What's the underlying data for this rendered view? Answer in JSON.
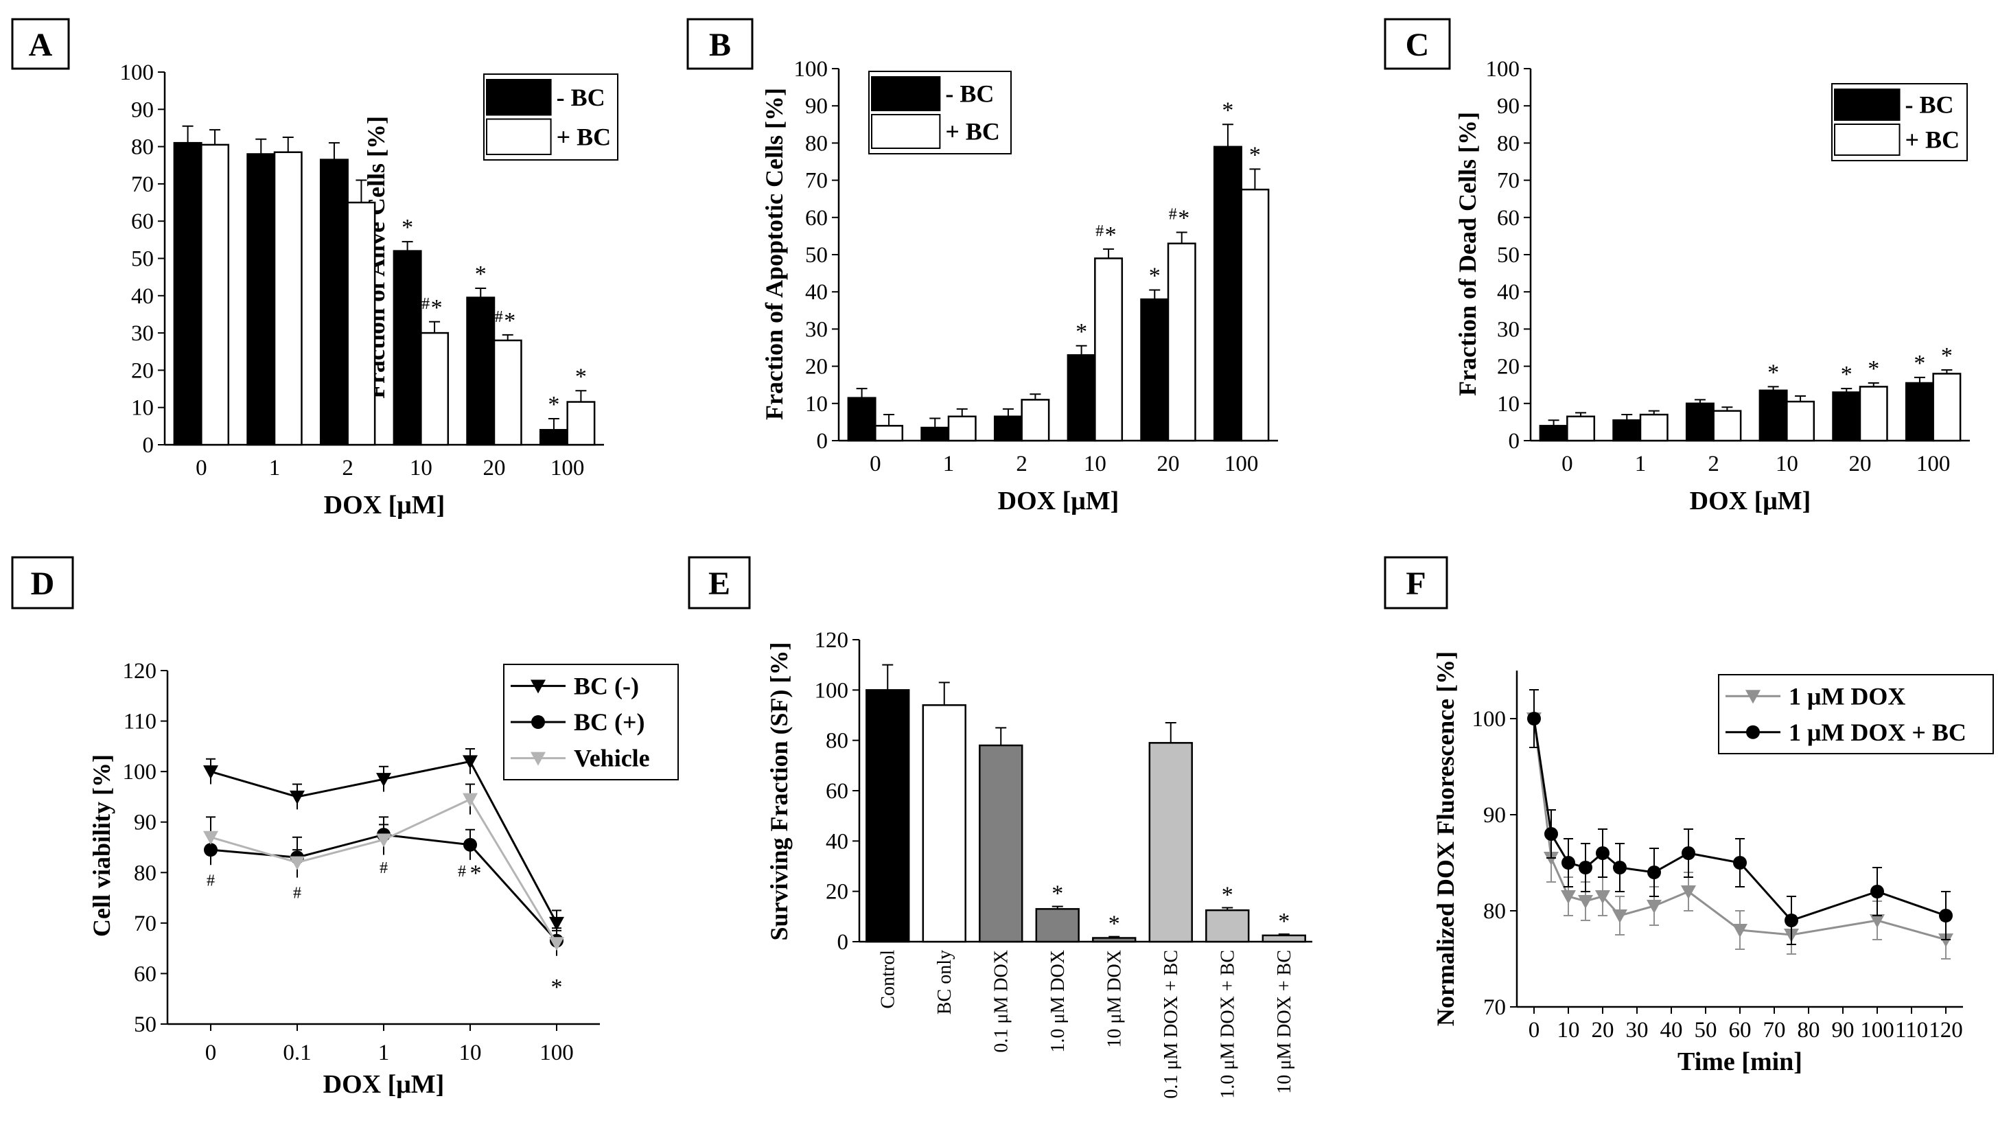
{
  "chart_data": [
    {
      "panel": "A",
      "type": "bar",
      "title": "A",
      "xlabel": "DOX [μM]",
      "ylabel": "Fraction of Alive Cells [%]",
      "ylim": [
        0,
        100
      ],
      "yticks": [
        "0",
        "10",
        "20",
        "30",
        "40",
        "50",
        "60",
        "70",
        "80",
        "90",
        "100"
      ],
      "categories": [
        "0",
        "1",
        "2",
        "10",
        "20",
        "100"
      ],
      "series": [
        {
          "name": "- BC",
          "color": "#000000",
          "values": [
            81,
            78,
            76.5,
            52,
            39.5,
            4
          ],
          "errors": [
            4.5,
            4,
            4.5,
            2.5,
            2.5,
            3
          ],
          "marks": [
            "",
            "",
            "",
            "*",
            "*",
            "*"
          ]
        },
        {
          "name": "+ BC",
          "color": "#ffffff",
          "values": [
            80.5,
            78.5,
            65,
            30,
            28,
            11.5
          ],
          "errors": [
            4,
            4,
            6,
            3,
            1.5,
            3
          ],
          "marks": [
            "",
            "",
            "",
            "#*",
            "#*",
            "*"
          ]
        }
      ],
      "legend": "top-right"
    },
    {
      "panel": "B",
      "type": "bar",
      "title": "B",
      "xlabel": "DOX [μM]",
      "ylabel": "Fraction of Apoptotic Cells [%]",
      "ylim": [
        0,
        100
      ],
      "yticks": [
        "0",
        "10",
        "20",
        "30",
        "40",
        "50",
        "60",
        "70",
        "80",
        "90",
        "100"
      ],
      "categories": [
        "0",
        "1",
        "2",
        "10",
        "20",
        "100"
      ],
      "series": [
        {
          "name": "- BC",
          "color": "#000000",
          "values": [
            11.5,
            3.5,
            6.5,
            23,
            38,
            79
          ],
          "errors": [
            2.5,
            2.5,
            2,
            2.5,
            2.5,
            6
          ],
          "marks": [
            "",
            "",
            "",
            "*",
            "*",
            "*"
          ]
        },
        {
          "name": "+ BC",
          "color": "#ffffff",
          "values": [
            4,
            6.5,
            11,
            49,
            53,
            67.5
          ],
          "errors": [
            3,
            2,
            1.5,
            2.5,
            3,
            5.5
          ],
          "marks": [
            "",
            "",
            "",
            "#*",
            "#*",
            "*"
          ]
        }
      ],
      "legend": "top-left"
    },
    {
      "panel": "C",
      "type": "bar",
      "title": "C",
      "xlabel": "DOX [μM]",
      "ylabel": "Fraction of Dead Cells [%]",
      "ylim": [
        0,
        100
      ],
      "yticks": [
        "0",
        "10",
        "20",
        "30",
        "40",
        "50",
        "60",
        "70",
        "80",
        "90",
        "100"
      ],
      "categories": [
        "0",
        "1",
        "2",
        "10",
        "20",
        "100"
      ],
      "series": [
        {
          "name": "- BC",
          "color": "#000000",
          "values": [
            4,
            5.5,
            10,
            13.5,
            13,
            15.5
          ],
          "errors": [
            1.5,
            1.5,
            1,
            1,
            1,
            1.5
          ],
          "marks": [
            "",
            "",
            "",
            "*",
            "*",
            "*"
          ]
        },
        {
          "name": "+ BC",
          "color": "#ffffff",
          "values": [
            6.5,
            7,
            8,
            10.5,
            14.5,
            18
          ],
          "errors": [
            1,
            1,
            1,
            1.5,
            1,
            1
          ],
          "marks": [
            "",
            "",
            "",
            "",
            "*",
            "*"
          ]
        }
      ],
      "legend": "top-right"
    },
    {
      "panel": "D",
      "type": "line",
      "title": "D",
      "xlabel": "DOX [μM]",
      "ylabel": "Cell viability [%]",
      "ylim": [
        50,
        120
      ],
      "yticks": [
        "50",
        "60",
        "70",
        "80",
        "90",
        "100",
        "110",
        "120"
      ],
      "categories": [
        "0",
        "0.1",
        "1",
        "10",
        "100"
      ],
      "series": [
        {
          "name": "BC (-)",
          "color": "#000000",
          "marker": "triangle-down",
          "values": [
            100,
            95,
            98.5,
            102,
            70
          ],
          "errors": [
            2.5,
            2.5,
            2.5,
            2.5,
            2.5
          ]
        },
        {
          "name": "BC (+)",
          "color": "#000000",
          "marker": "circle",
          "values": [
            84.5,
            83,
            87.5,
            85.5,
            66.5
          ],
          "errors": [
            3,
            4,
            3.5,
            3,
            2.5
          ]
        },
        {
          "name": "Vehicle",
          "color": "#b4b4b4",
          "marker": "triangle-down",
          "values": [
            87,
            82,
            86.5,
            94.5,
            66
          ],
          "errors": [
            4,
            2.5,
            3,
            3,
            2.5
          ]
        }
      ],
      "annotations": [
        "#",
        "#",
        "#",
        "#*",
        "*"
      ],
      "legend": "top-right"
    },
    {
      "panel": "E",
      "type": "bar",
      "title": "E",
      "xlabel": "",
      "ylabel": "Surviving Fraction (SF) [%]",
      "ylim": [
        0,
        120
      ],
      "yticks": [
        "0",
        "20",
        "40",
        "60",
        "80",
        "100",
        "120"
      ],
      "categories": [
        "Control",
        "BC only",
        "0.1 μM DOX",
        "1.0 μM DOX",
        "10 μM DOX",
        "0.1 μM DOX + BC",
        "1.0 μM DOX + BC",
        "10 μM DOX + BC"
      ],
      "values": [
        100,
        94,
        78,
        13,
        1.5,
        79,
        12.5,
        2.5
      ],
      "errors": [
        10,
        9,
        7,
        1,
        0.5,
        8,
        1,
        0.5
      ],
      "colors": [
        "#000000",
        "#ffffff",
        "#808080",
        "#808080",
        "#808080",
        "#c0c0c0",
        "#c0c0c0",
        "#c0c0c0"
      ],
      "marks": [
        "",
        "",
        "",
        "*",
        "*",
        "",
        "*",
        "*"
      ]
    },
    {
      "panel": "F",
      "type": "line",
      "title": "F",
      "xlabel": "Time [min]",
      "ylabel": "Normalized DOX Fluorescence [%]",
      "xlim": [
        -5,
        125
      ],
      "ylim": [
        70,
        105
      ],
      "xticks": [
        "0",
        "10",
        "20",
        "30",
        "40",
        "50",
        "60",
        "70",
        "80",
        "90",
        "100",
        "110",
        "120"
      ],
      "yticks": [
        "70",
        "80",
        "90",
        "100"
      ],
      "series": [
        {
          "name": "1 μM DOX",
          "color": "#909090",
          "marker": "triangle-down",
          "x": [
            0,
            5,
            10,
            15,
            20,
            25,
            35,
            45,
            60,
            75,
            100,
            120
          ],
          "y": [
            100,
            85.5,
            81.5,
            81,
            81.5,
            79.5,
            80.5,
            82,
            78,
            77.5,
            79,
            77
          ],
          "errors": [
            3,
            2.5,
            2,
            2,
            2,
            2,
            2,
            2,
            2,
            2,
            2,
            2
          ]
        },
        {
          "name": "1 μM DOX + BC",
          "color": "#000000",
          "marker": "circle",
          "x": [
            0,
            5,
            10,
            15,
            20,
            25,
            35,
            45,
            60,
            75,
            100,
            120
          ],
          "y": [
            100,
            88,
            85,
            84.5,
            86,
            84.5,
            84,
            86,
            85,
            79,
            82,
            79.5
          ],
          "errors": [
            3,
            2.5,
            2.5,
            2.5,
            2.5,
            2.5,
            2.5,
            2.5,
            2.5,
            2.5,
            2.5,
            2.5
          ]
        }
      ],
      "legend": "top-right"
    }
  ]
}
